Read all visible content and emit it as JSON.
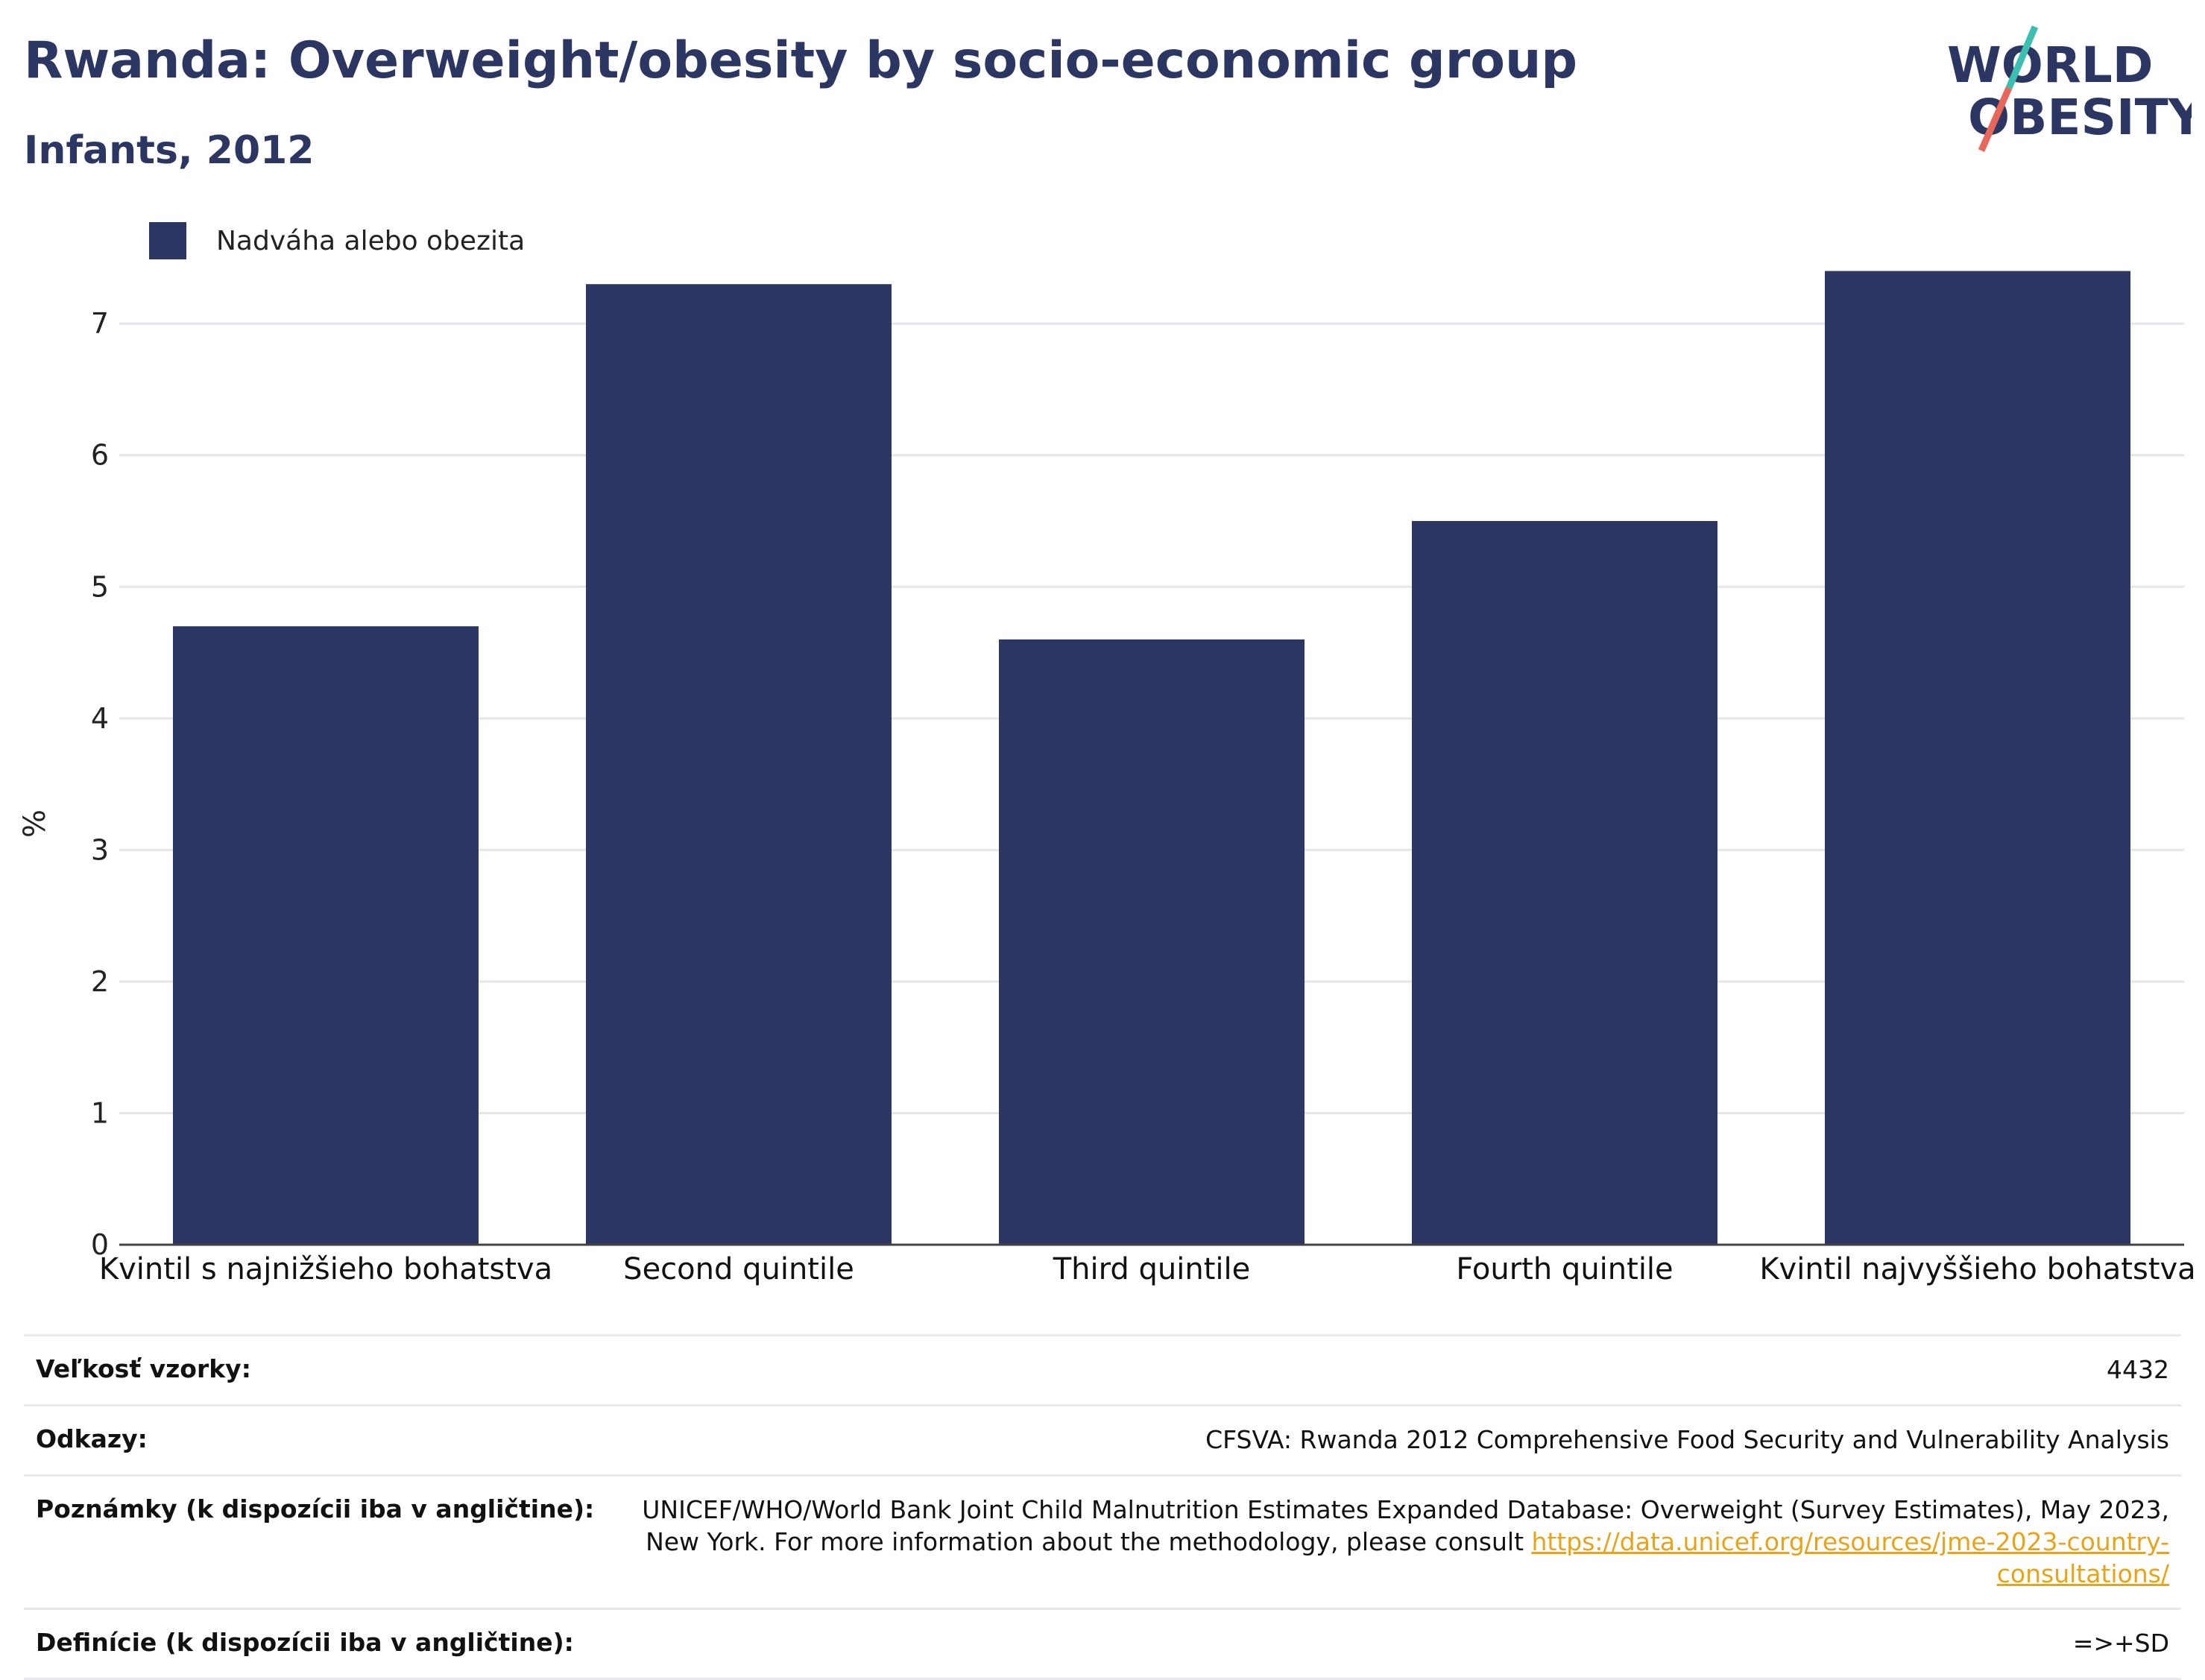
{
  "header": {
    "title": "Rwanda: Overweight/obesity by socio-economic group",
    "subtitle": "Infants, 2012",
    "logo_line1": "WORLD",
    "logo_line2": "OBESITY"
  },
  "colors": {
    "bar": "#2b3663",
    "title": "#2b3663",
    "grid": "#e6e6ea",
    "link": "#e8a317"
  },
  "chart_data": {
    "type": "bar",
    "categories": [
      "Kvintil s najnižšieho bohatstva",
      "Second quintile",
      "Third quintile",
      "Fourth quintile",
      "Kvintil najvyššieho bohatstva"
    ],
    "series": [
      {
        "name": "Nadváha alebo obezita",
        "values": [
          4.7,
          7.3,
          4.6,
          5.5,
          7.4
        ]
      }
    ],
    "ylabel": "%",
    "ylim": [
      0,
      8.1
    ],
    "yticks": [
      0,
      1,
      2,
      3,
      4,
      5,
      6,
      7
    ],
    "grid": true,
    "legend": "top-left"
  },
  "info": [
    {
      "key": "Veľkosť vzorky:",
      "value": "4432"
    },
    {
      "key": "Odkazy:",
      "value": "CFSVA: Rwanda 2012 Comprehensive Food Security and Vulnerability Analysis"
    },
    {
      "key": "Poznámky (k dispozícii iba v angličtine):",
      "value": "UNICEF/WHO/World Bank Joint Child Malnutrition Estimates Expanded Database: Overweight (Survey Estimates), May 2023, New York. For more information about the methodology, please consult ",
      "link": "https://data.unicef.org/resources/jme-2023-country-consultations/"
    },
    {
      "key": "Definície (k dispozícii iba v angličtine):",
      "value": "=>+SD"
    }
  ]
}
